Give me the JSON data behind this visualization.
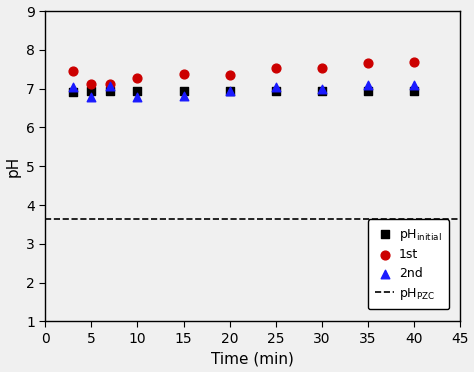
{
  "x_initial": [
    3,
    5,
    7,
    10,
    15,
    20,
    25,
    30,
    35,
    40
  ],
  "y_initial": [
    6.92,
    6.95,
    6.93,
    6.93,
    6.93,
    6.93,
    6.95,
    6.93,
    6.93,
    6.93
  ],
  "x_1st": [
    3,
    5,
    7,
    10,
    15,
    20,
    25,
    30,
    35,
    40
  ],
  "y_1st": [
    7.45,
    7.12,
    7.12,
    7.28,
    7.38,
    7.35,
    7.52,
    7.52,
    7.65,
    7.68
  ],
  "x_2nd": [
    3,
    5,
    7,
    10,
    15,
    20,
    25,
    30,
    35,
    40
  ],
  "y_2nd": [
    7.05,
    6.78,
    7.08,
    6.78,
    6.8,
    6.93,
    7.05,
    7.0,
    7.1,
    7.1
  ],
  "ph_pzc": 3.65,
  "xlim": [
    0,
    45
  ],
  "ylim": [
    1,
    9
  ],
  "yticks": [
    1,
    2,
    3,
    4,
    5,
    6,
    7,
    8,
    9
  ],
  "xticks": [
    0,
    5,
    10,
    15,
    20,
    25,
    30,
    35,
    40,
    45
  ],
  "xlabel": "Time (min)",
  "ylabel": "pH",
  "color_initial": "#000000",
  "color_1st": "#cc0000",
  "color_2nd": "#1a1aff",
  "legend_label_0": "pH$_\\mathrm{initial}$",
  "legend_label_1": "1st",
  "legend_label_2": "2nd",
  "legend_label_3": "pH$_\\mathrm{PZC}$",
  "figsize": [
    4.74,
    3.72
  ],
  "dpi": 100,
  "bg_color": "#f0f0f0"
}
